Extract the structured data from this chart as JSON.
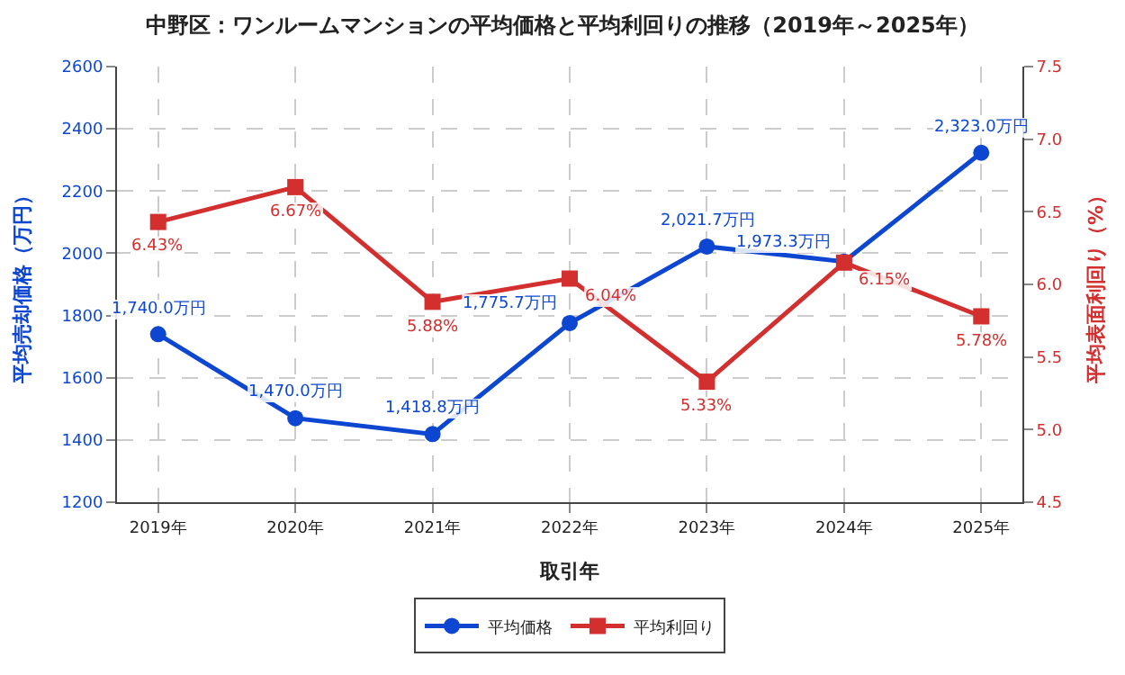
{
  "chart_data": {
    "type": "line",
    "title": "中野区：ワンルームマンションの平均価格と平均利回りの推移（2019年～2025年）",
    "xlabel": "取引年",
    "ylabel": "平均売却価格（万円）",
    "y2label": "平均表面利回り（%）",
    "categories": [
      "2019年",
      "2020年",
      "2021年",
      "2022年",
      "2023年",
      "2024年",
      "2025年"
    ],
    "series": [
      {
        "name": "平均価格",
        "color": "#0d47d1",
        "marker": "circle",
        "values": [
          1740.0,
          1470.0,
          1418.8,
          1775.7,
          2021.7,
          1973.3,
          2323.0
        ],
        "value_labels": [
          "1,740.0万円",
          "1,470.0万円",
          "1,418.8万円",
          "1,775.7万円",
          "2,021.7万円",
          "1,973.3万円",
          "2,323.0万円"
        ]
      },
      {
        "name": "平均利回り",
        "color": "#d32f2f",
        "marker": "square",
        "axis": "y2",
        "values": [
          6.43,
          6.67,
          5.88,
          6.04,
          5.33,
          6.15,
          5.78
        ],
        "value_labels": [
          "6.43%",
          "6.67%",
          "5.88%",
          "6.04%",
          "5.33%",
          "6.15%",
          "5.78%"
        ]
      }
    ],
    "ylim": [
      1200,
      2600
    ],
    "yticks": [
      1200,
      1400,
      1600,
      1800,
      2000,
      2200,
      2400,
      2600
    ],
    "y2lim": [
      4.5,
      7.5
    ],
    "y2ticks": [
      4.5,
      {
        "value": 5,
        "label": "5.0"
      },
      5.5,
      {
        "value": 6,
        "label": "6.0"
      },
      6.5,
      {
        "value": 7,
        "label": "7.0"
      },
      7.5
    ],
    "grid": true,
    "legend": "bottom",
    "line_style": "solid"
  }
}
